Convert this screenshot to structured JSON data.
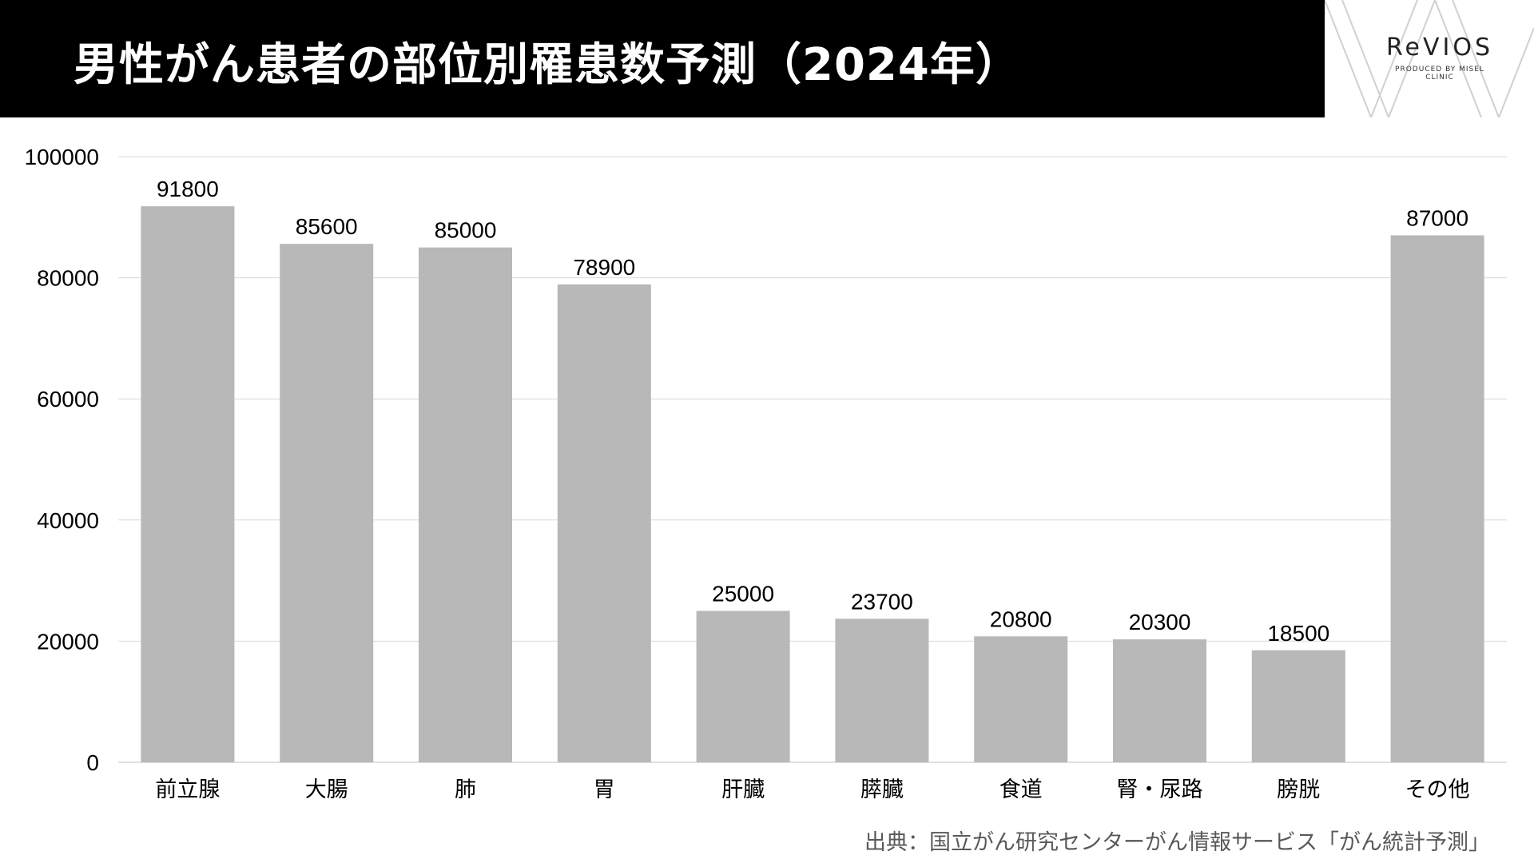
{
  "title": "男性がん患者の部位別罹患数予測（2024年）",
  "logo": {
    "name": "ReVIOS",
    "tagline": "PRODUCED BY MISEL CLINIC"
  },
  "source": "出典：国立がん研究センターがん情報サービス「がん統計予測」",
  "colors": {
    "header": "#000000",
    "bar": "#b8b8b8",
    "grid": "#d9d9d9",
    "text": "#000000"
  },
  "chart_data": {
    "type": "bar",
    "title": "男性がん患者の部位別罹患数予測（2024年）",
    "categories": [
      "前立腺",
      "大腸",
      "肺",
      "胃",
      "肝臓",
      "膵臓",
      "食道",
      "腎・尿路",
      "膀胱",
      "その他"
    ],
    "values": [
      91800,
      85600,
      85000,
      78900,
      25000,
      23700,
      20800,
      20300,
      18500,
      87000
    ],
    "yticks": [
      0,
      20000,
      40000,
      60000,
      80000,
      100000
    ],
    "ylim": [
      0,
      100000
    ],
    "grid": true,
    "legend": false,
    "data_labels": true
  }
}
